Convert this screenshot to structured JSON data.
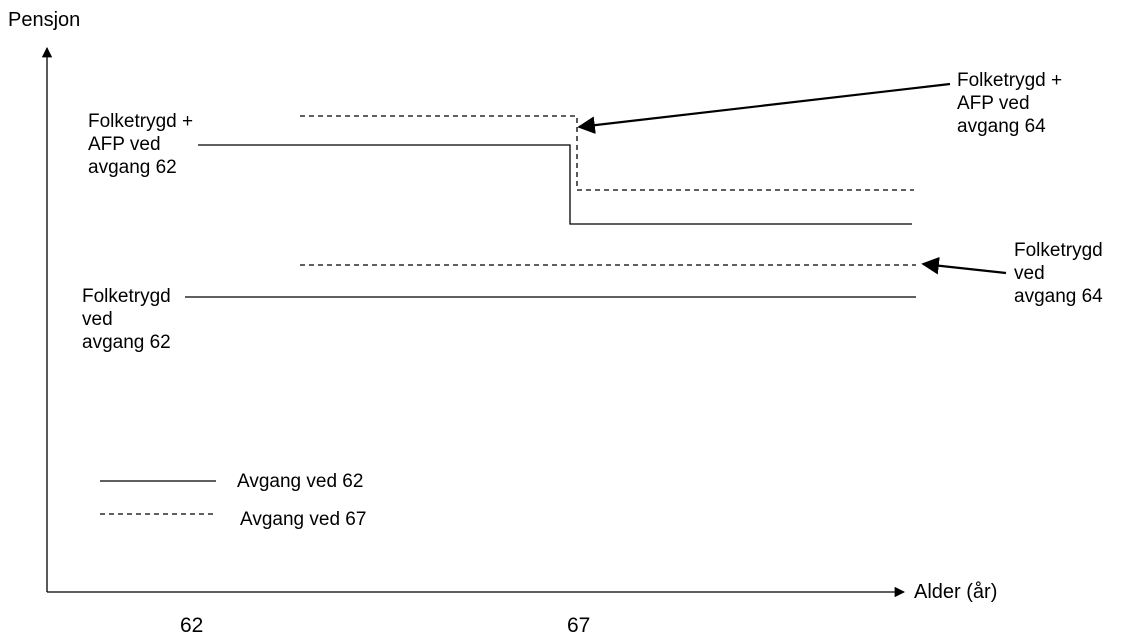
{
  "axes": {
    "y_title": "Pensjon",
    "x_title": "Alder (år)",
    "x_ticks": [
      "62",
      "67"
    ]
  },
  "labels": {
    "fa62": [
      "Folketrygd +",
      "AFP ved",
      "avgang 62"
    ],
    "fa64": [
      "Folketrygd +",
      "AFP ved",
      "avgang 64"
    ],
    "f64": [
      "Folketrygd",
      "ved",
      "avgang 64"
    ],
    "f62": [
      "Folketrygd",
      "ved",
      "avgang 62"
    ]
  },
  "legend": [
    {
      "label": "Avgang ved 62",
      "style": "solid"
    },
    {
      "label": "Avgang ved 67",
      "style": "dashed"
    }
  ],
  "colors": {
    "line": "#000000",
    "background": "#ffffff"
  }
}
